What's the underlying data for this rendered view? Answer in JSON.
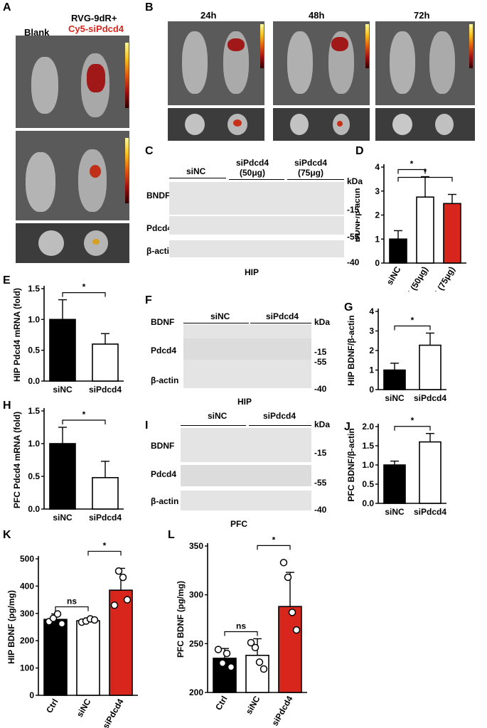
{
  "panels": {
    "A": {
      "label": "A",
      "col_blank": "Blank",
      "col_treat_1": "RVG-9dR+",
      "col_treat_2": "Cy5-siPdcd4"
    },
    "B": {
      "label": "B",
      "times": [
        "24h",
        "48h",
        "72h"
      ]
    },
    "C": {
      "label": "C",
      "groups": [
        "siNC",
        "siPdcd4\n(50μg)",
        "siPdcd4\n(75μg)"
      ],
      "rows": [
        "BNDF",
        "Pdcd4",
        "β-actin"
      ],
      "kda_label": "kDa",
      "kda": [
        "-15",
        "-55",
        "-40"
      ],
      "tissue": "HIP"
    },
    "F": {
      "label": "F",
      "groups": [
        "siNC",
        "siPdcd4"
      ],
      "rows": [
        "BDNF",
        "Pdcd4",
        "β-actin"
      ],
      "kda_label": "kDa",
      "kda": [
        "-15",
        "-55",
        "-40"
      ],
      "tissue": "HIP"
    },
    "I": {
      "label": "I",
      "groups": [
        "siNC",
        "siPdcd4"
      ],
      "rows": [
        "BDNF",
        "Pdcd4",
        "β-actin"
      ],
      "kda_label": "kDa",
      "kda": [
        "-15",
        "-55",
        "-40"
      ],
      "tissue": "PFC"
    }
  },
  "chart_data": [
    {
      "panel": "D",
      "type": "bar",
      "ylabel": "BDNF/β-actin",
      "categories": [
        "siNC",
        "siPdcd4 (50μg)",
        "siPdcd4 (75μg)"
      ],
      "values": [
        1.0,
        2.75,
        2.48
      ],
      "errors": [
        0.35,
        0.85,
        0.38
      ],
      "colors": [
        "#000000",
        "#ffffff",
        "#d9261c"
      ],
      "ylim": [
        0,
        4
      ],
      "yticks": [
        0,
        1,
        2,
        3,
        4
      ],
      "significance": [
        "*",
        "*"
      ]
    },
    {
      "panel": "E",
      "type": "bar",
      "ylabel": "HIP Pdcd4 mRNA (fold)",
      "categories": [
        "siNC",
        "siPdcd4"
      ],
      "values": [
        1.0,
        0.6
      ],
      "errors": [
        0.32,
        0.17
      ],
      "colors": [
        "#000000",
        "#ffffff"
      ],
      "ylim": [
        0,
        1.5
      ],
      "yticks": [
        0.0,
        0.5,
        1.0,
        1.5
      ],
      "significance": [
        "*"
      ]
    },
    {
      "panel": "G",
      "type": "bar",
      "ylabel": "HIP BDNF/β-actin",
      "categories": [
        "siNC",
        "siPdcd4"
      ],
      "values": [
        1.0,
        2.27
      ],
      "errors": [
        0.35,
        0.62
      ],
      "colors": [
        "#000000",
        "#ffffff"
      ],
      "ylim": [
        0,
        4
      ],
      "yticks": [
        0,
        1,
        2,
        3,
        4
      ],
      "significance": [
        "*"
      ]
    },
    {
      "panel": "H",
      "type": "bar",
      "ylabel": "PFC Pdcd4 mRNA (fold)",
      "categories": [
        "siNC",
        "siPdcd4"
      ],
      "values": [
        1.0,
        0.48
      ],
      "errors": [
        0.25,
        0.25
      ],
      "colors": [
        "#000000",
        "#ffffff"
      ],
      "ylim": [
        0,
        1.5
      ],
      "yticks": [
        0.0,
        0.5,
        1.0,
        1.5
      ],
      "significance": [
        "*"
      ]
    },
    {
      "panel": "J",
      "type": "bar",
      "ylabel": "PFC BDNF/β-actin",
      "categories": [
        "siNC",
        "siPdcd4"
      ],
      "values": [
        1.0,
        1.6
      ],
      "errors": [
        0.1,
        0.22
      ],
      "colors": [
        "#000000",
        "#ffffff"
      ],
      "ylim": [
        0,
        2.0
      ],
      "yticks": [
        0.0,
        0.5,
        1.0,
        1.5,
        2.0
      ],
      "significance": [
        "*"
      ]
    },
    {
      "panel": "K",
      "type": "bar",
      "ylabel": "HIP BDNF (pg/mg)",
      "categories": [
        "Ctrl",
        "siNC",
        "siPdcd4"
      ],
      "values": [
        278,
        273,
        385
      ],
      "errors": [
        20,
        10,
        80
      ],
      "colors": [
        "#000000",
        "#ffffff",
        "#d9261c"
      ],
      "points": [
        [
          270,
          282,
          298,
          262
        ],
        [
          268,
          272,
          280,
          276
        ],
        [
          330,
          455,
          432,
          350
        ]
      ],
      "ylim": [
        0,
        500
      ],
      "yticks": [
        0,
        100,
        200,
        300,
        400,
        500
      ],
      "significance": [
        "ns",
        "*"
      ]
    },
    {
      "panel": "L",
      "type": "bar",
      "ylabel": "PFC BDNF (pg/mg)",
      "categories": [
        "Ctrl",
        "siNC",
        "siPdcd4"
      ],
      "values": [
        235,
        238,
        288
      ],
      "errors": [
        10,
        17,
        35
      ],
      "colors": [
        "#000000",
        "#ffffff",
        "#d9261c"
      ],
      "points": [
        [
          244,
          230,
          240,
          226
        ],
        [
          251,
          246,
          231,
          224
        ],
        [
          333,
          318,
          282,
          264
        ]
      ],
      "ylim": [
        200,
        350
      ],
      "yticks": [
        200,
        250,
        300,
        350
      ],
      "significance": [
        "ns",
        "*"
      ]
    }
  ]
}
